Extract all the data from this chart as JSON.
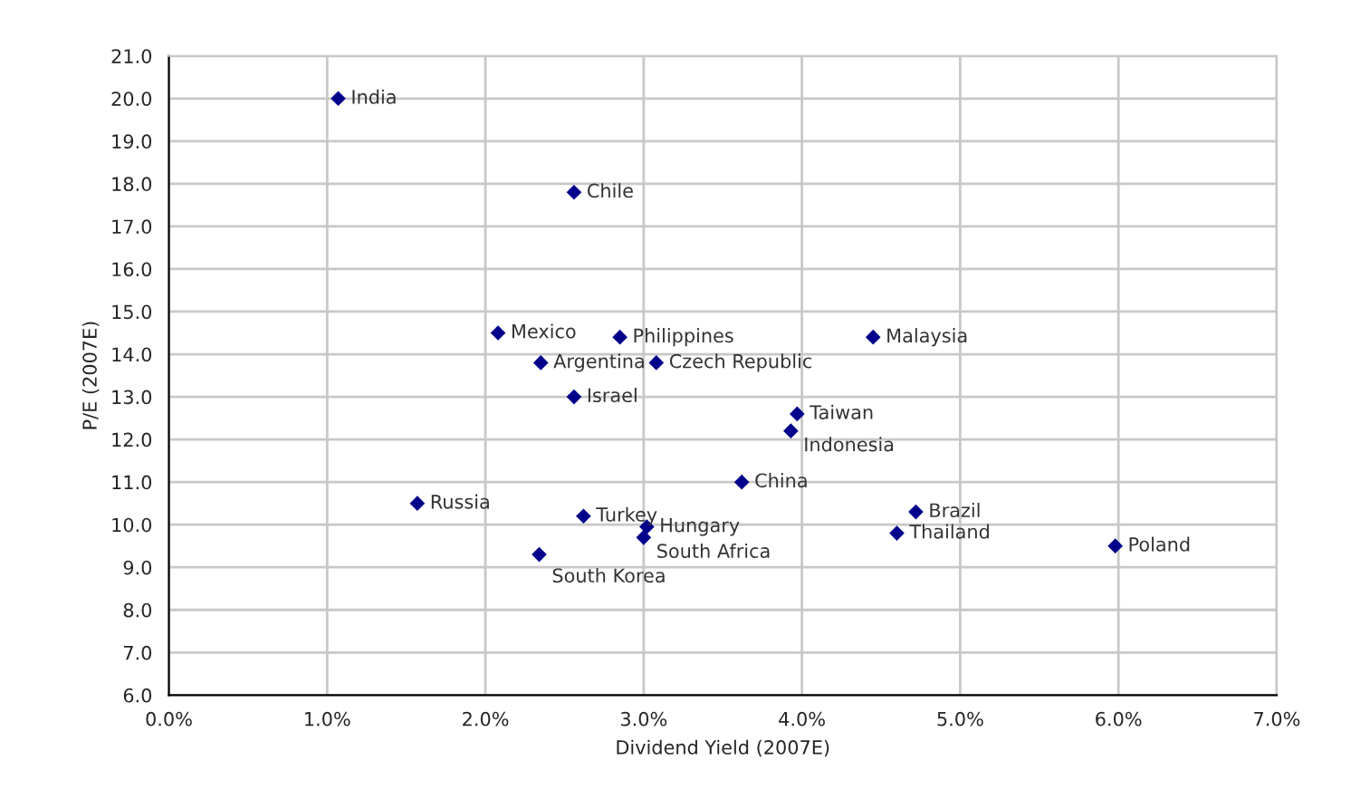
{
  "chart_data": {
    "type": "scatter",
    "xlabel": "Dividend Yield (2007E)",
    "ylabel": "P/E (2007E)",
    "series": [
      {
        "color": "#00008b",
        "x": [
          1.07,
          2.56,
          2.08,
          2.85,
          2.35,
          3.08,
          2.56,
          4.45,
          3.97,
          3.93,
          3.62,
          4.72,
          4.6,
          5.98,
          1.57,
          2.62,
          3.02,
          3.0,
          2.34
        ],
        "values": [
          20.0,
          17.8,
          14.5,
          14.4,
          13.8,
          13.8,
          13.0,
          14.4,
          12.6,
          12.2,
          11.0,
          10.3,
          9.8,
          9.5,
          10.5,
          10.2,
          9.95,
          9.7,
          9.3
        ]
      }
    ],
    "annotations": [
      {
        "text": "India",
        "x": 1.07,
        "y": 20.0
      },
      {
        "text": "Chile",
        "x": 2.56,
        "y": 17.8
      },
      {
        "text": "Mexico",
        "x": 2.08,
        "y": 14.5
      },
      {
        "text": "Philippines",
        "x": 2.85,
        "y": 14.4
      },
      {
        "text": "Argentina",
        "x": 2.35,
        "y": 13.8
      },
      {
        "text": "Czech Republic",
        "x": 3.08,
        "y": 13.8
      },
      {
        "text": "Israel",
        "x": 2.56,
        "y": 13.0
      },
      {
        "text": "Malaysia",
        "x": 4.45,
        "y": 14.4
      },
      {
        "text": "Taiwan",
        "x": 3.97,
        "y": 12.6
      },
      {
        "text": "Indonesia",
        "x": 3.93,
        "y": 12.2
      },
      {
        "text": "China",
        "x": 3.62,
        "y": 11.0
      },
      {
        "text": "Brazil",
        "x": 4.72,
        "y": 10.3
      },
      {
        "text": "Thailand",
        "x": 4.6,
        "y": 9.8
      },
      {
        "text": "Poland",
        "x": 5.98,
        "y": 9.5
      },
      {
        "text": "Russia",
        "x": 1.57,
        "y": 10.5
      },
      {
        "text": "Turkey",
        "x": 2.62,
        "y": 10.2
      },
      {
        "text": "Hungary",
        "x": 3.02,
        "y": 9.95
      },
      {
        "text": "South Africa",
        "x": 3.0,
        "y": 9.7
      },
      {
        "text": "South Korea",
        "x": 2.34,
        "y": 9.3
      }
    ],
    "xlim": [
      0,
      7
    ],
    "xticks": [
      {
        "value": 0,
        "label": "0.0%"
      },
      {
        "value": 1,
        "label": "1.0%"
      },
      {
        "value": 2,
        "label": "2.0%"
      },
      {
        "value": 3,
        "label": "3.0%"
      },
      {
        "value": 4,
        "label": "4.0%"
      },
      {
        "value": 5,
        "label": "5.0%"
      },
      {
        "value": 6,
        "label": "6.0%"
      },
      {
        "value": 7,
        "label": "7.0%"
      }
    ],
    "ylim": [
      6,
      21
    ],
    "yticks": [
      {
        "value": 6,
        "label": "6.0"
      },
      {
        "value": 7,
        "label": "7.0"
      },
      {
        "value": 8,
        "label": "8.0"
      },
      {
        "value": 9,
        "label": "9.0"
      },
      {
        "value": 10,
        "label": "10.0"
      },
      {
        "value": 11,
        "label": "11.0"
      },
      {
        "value": 12,
        "label": "12.0"
      },
      {
        "value": 13,
        "label": "13.0"
      },
      {
        "value": 14,
        "label": "14.0"
      },
      {
        "value": 15,
        "label": "15.0"
      },
      {
        "value": 16,
        "label": "16.0"
      },
      {
        "value": 17,
        "label": "17.0"
      },
      {
        "value": 18,
        "label": "18.0"
      },
      {
        "value": 19,
        "label": "19.0"
      },
      {
        "value": 20,
        "label": "20.0"
      },
      {
        "value": 21,
        "label": "21.0"
      }
    ],
    "grid": true,
    "marker": "diamond"
  }
}
